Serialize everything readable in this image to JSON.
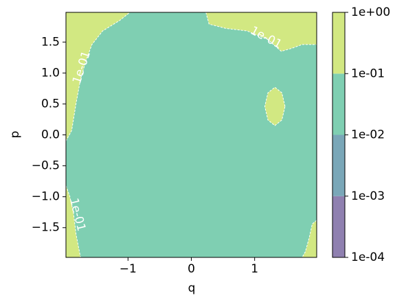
{
  "chart_data": {
    "type": "contourf",
    "xlabel": "q",
    "ylabel": "p",
    "xlim": [
      -1.98,
      1.98
    ],
    "ylim": [
      -1.98,
      1.98
    ],
    "xticks": [
      {
        "value": -1,
        "label": "−1"
      },
      0,
      1
    ],
    "yticks": [
      {
        "value": -1.5,
        "label": "−1.5"
      },
      {
        "value": -1.0,
        "label": "−1.0"
      },
      {
        "value": -0.5,
        "label": "−0.5"
      },
      {
        "value": 0.0,
        "label": "0.0"
      },
      0.5,
      {
        "value": 1.0,
        "label": "1.0"
      },
      1.5
    ],
    "colorbar_scale": "log",
    "levels": [
      {
        "value": 0.0001,
        "label": "1e-04"
      },
      {
        "value": 0.001,
        "label": "1e-03"
      },
      {
        "value": 0.01,
        "label": "1e-02"
      },
      {
        "value": 0.1,
        "label": "1e-01"
      },
      {
        "value": 1,
        "label": "1e+00"
      }
    ],
    "colors": [
      "#8f80b0",
      "#7aa7b8",
      "#7fcfb2",
      "#d2e882"
    ],
    "background_level": 0.01,
    "regions": [
      {
        "level": 0.1,
        "q": [
          -1.98,
          -0.97,
          -1.13,
          -1.4,
          -1.57,
          -1.67,
          -1.75,
          -1.82,
          -1.89,
          -1.98
        ],
        "p": [
          1.98,
          1.98,
          1.85,
          1.68,
          1.46,
          1.18,
          0.9,
          0.51,
          0.07,
          -0.1
        ]
      },
      {
        "level": 0.1,
        "q": [
          0.23,
          0.28,
          0.55,
          0.88,
          1.21,
          1.42,
          1.59,
          1.75,
          1.98,
          1.98
        ],
        "p": [
          1.98,
          1.79,
          1.72,
          1.68,
          1.54,
          1.35,
          1.4,
          1.46,
          1.46,
          1.98
        ]
      },
      {
        "level": 0.1,
        "q": [
          1.48,
          1.43,
          1.32,
          1.21,
          1.16,
          1.21,
          1.32,
          1.43
        ],
        "p": [
          0.46,
          0.68,
          0.77,
          0.68,
          0.46,
          0.24,
          0.15,
          0.24
        ]
      },
      {
        "level": 0.1,
        "q": [
          -1.98,
          -1.92,
          -1.86,
          -1.82,
          -1.75,
          -1.98
        ],
        "p": [
          -0.82,
          -0.99,
          -1.27,
          -1.61,
          -1.98,
          -1.98
        ]
      },
      {
        "level": 0.1,
        "q": [
          1.98,
          1.91,
          1.86,
          1.8,
          1.75,
          1.98
        ],
        "p": [
          -1.38,
          -1.44,
          -1.67,
          -1.89,
          -1.98,
          -1.98
        ]
      }
    ],
    "contour_labels": [
      {
        "text": "1e-01",
        "q": -1.73,
        "p": 1.09
      },
      {
        "text": "1e-01",
        "q": 1.18,
        "p": 1.57
      },
      {
        "text": "1e-01",
        "q": -1.8,
        "p": -1.29
      }
    ]
  }
}
